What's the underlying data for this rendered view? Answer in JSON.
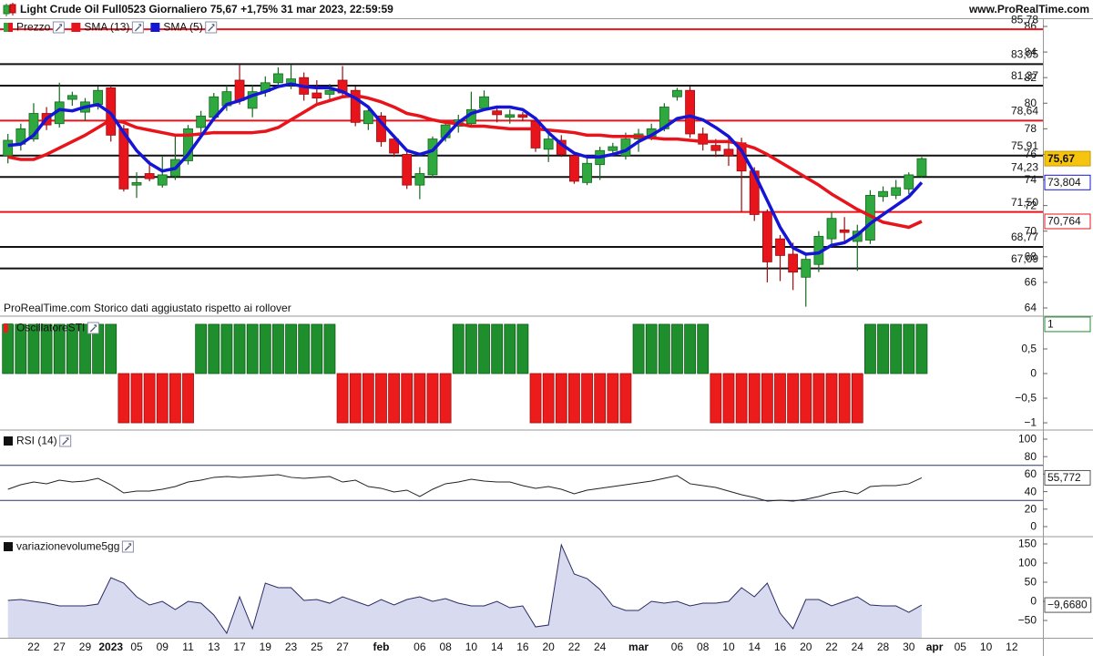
{
  "header": {
    "title": "Light Crude Oil Full0523 Giornaliero 75,67 +1,75% 31 mar 2023, 22:59:59",
    "site": "www.ProRealTime.com"
  },
  "chart_data": [
    {
      "type": "candlestick",
      "name": "Prezzo",
      "categories": [
        null,
        null,
        "22",
        null,
        "27",
        null,
        "29",
        null,
        "2023",
        null,
        "05",
        null,
        "09",
        null,
        "11",
        null,
        "13",
        null,
        "17",
        null,
        "19",
        null,
        "23",
        null,
        "25",
        null,
        "27",
        null,
        null,
        "feb",
        null,
        null,
        "06",
        null,
        "08",
        null,
        "10",
        null,
        "14",
        null,
        "16",
        null,
        "20",
        null,
        "22",
        null,
        "24",
        null,
        null,
        "mar",
        null,
        null,
        "06",
        null,
        "08",
        null,
        "10",
        null,
        "14",
        null,
        "16",
        null,
        "20",
        null,
        "22",
        null,
        "24",
        null,
        "28",
        null,
        "30",
        null,
        "apr",
        null,
        "05",
        null,
        "10",
        null,
        "12",
        null,
        null
      ],
      "open": [
        75.9,
        76.8,
        77.2,
        79.2,
        78.4,
        80.3,
        79.3,
        79.9,
        81.2,
        78.0,
        73.6,
        74.5,
        73.6,
        74.3,
        75.5,
        78.1,
        78.9,
        79.8,
        81.8,
        79.6,
        80.9,
        81.6,
        81.4,
        82.0,
        80.8,
        80.7,
        81.8,
        81.0,
        78.4,
        79.0,
        77.2,
        76.0,
        73.6,
        74.4,
        77.3,
        78.2,
        78.4,
        79.6,
        79.4,
        78.9,
        79.1,
        78.6,
        76.4,
        77.1,
        75.9,
        73.8,
        75.2,
        76.3,
        75.9,
        77.2,
        77.4,
        78.0,
        80.5,
        81.0,
        77.6,
        76.7,
        76.4,
        76.9,
        74.7,
        71.5,
        69.4,
        68.2,
        66.4,
        67.4,
        69.4,
        70.1,
        69.2,
        69.3,
        72.7,
        72.8,
        73.3,
        74.3,
        null,
        null,
        null,
        null,
        null,
        null,
        null,
        null,
        null
      ],
      "high": [
        77.6,
        78.4,
        80.0,
        79.7,
        81.6,
        80.9,
        80.4,
        81.3,
        81.4,
        78.3,
        74.6,
        75.5,
        75.9,
        77.5,
        78.3,
        79.4,
        80.8,
        81.4,
        83.0,
        81.4,
        82.1,
        82.8,
        83.0,
        82.4,
        81.8,
        81.5,
        82.9,
        81.3,
        79.8,
        79.3,
        77.5,
        76.3,
        75.0,
        77.4,
        78.6,
        79.1,
        80.9,
        81.0,
        79.8,
        79.5,
        79.3,
        78.8,
        77.6,
        77.5,
        76.1,
        75.9,
        76.6,
        76.9,
        77.7,
        78.0,
        78.4,
        80.0,
        81.2,
        81.3,
        78.1,
        77.2,
        77.5,
        77.3,
        75.0,
        71.7,
        69.7,
        69.1,
        68.3,
        70.0,
        71.5,
        71.1,
        70.5,
        73.2,
        73.5,
        74.0,
        74.6,
        75.8,
        null,
        null,
        null,
        null,
        null,
        null,
        null,
        null,
        null
      ],
      "low": [
        75.3,
        76.3,
        77.0,
        77.9,
        78.1,
        79.8,
        78.6,
        79.5,
        77.0,
        73.1,
        72.6,
        73.9,
        73.4,
        74.0,
        75.2,
        77.6,
        78.6,
        79.4,
        79.9,
        78.9,
        80.5,
        81.2,
        81.1,
        80.2,
        79.9,
        80.3,
        80.5,
        78.2,
        77.9,
        76.6,
        75.8,
        73.3,
        72.5,
        74.2,
        77.0,
        77.7,
        78.3,
        79.4,
        78.5,
        78.4,
        78.6,
        76.2,
        75.4,
        75.8,
        73.7,
        73.6,
        74.0,
        75.9,
        75.6,
        76.2,
        77.1,
        77.8,
        80.2,
        77.3,
        76.3,
        75.8,
        75.1,
        71.5,
        70.8,
        66.0,
        66.1,
        65.4,
        64.1,
        66.8,
        68.9,
        69.2,
        66.9,
        69.0,
        72.3,
        72.5,
        72.9,
        74.2,
        null,
        null,
        null,
        null,
        null,
        null,
        null,
        null,
        null
      ],
      "close": [
        77.1,
        78.0,
        79.2,
        78.3,
        80.1,
        80.6,
        80.1,
        81.0,
        77.5,
        73.3,
        73.8,
        74.1,
        74.4,
        75.6,
        78.0,
        79.0,
        80.5,
        80.9,
        80.2,
        80.9,
        81.6,
        82.3,
        81.9,
        80.7,
        80.4,
        81.0,
        80.8,
        78.5,
        79.4,
        77.0,
        76.1,
        73.6,
        74.5,
        77.2,
        78.3,
        78.7,
        79.5,
        80.5,
        79.1,
        79.1,
        78.9,
        76.5,
        77.2,
        76.0,
        73.9,
        75.3,
        76.3,
        76.6,
        77.2,
        77.6,
        78.0,
        79.7,
        81.0,
        77.6,
        76.8,
        76.3,
        75.9,
        74.7,
        71.3,
        67.6,
        68.1,
        66.8,
        67.8,
        69.6,
        71.0,
        69.9,
        70.0,
        72.8,
        73.1,
        73.4,
        74.4,
        75.67,
        null,
        null,
        null,
        null,
        null,
        null,
        null,
        null,
        null
      ],
      "up_color": "#2ea83f",
      "down_color": "#e8141b",
      "close_label": "75,67",
      "series": [
        {
          "name": "SMA (13)",
          "color": "#e8141b",
          "last_label": "70,764",
          "values": [
            75.8,
            75.6,
            75.6,
            76.0,
            76.5,
            77.0,
            77.5,
            78.1,
            78.7,
            78.5,
            78.1,
            77.9,
            77.7,
            77.5,
            77.5,
            77.6,
            77.7,
            77.7,
            77.7,
            77.7,
            77.8,
            78.1,
            78.7,
            79.3,
            79.9,
            80.2,
            80.5,
            80.6,
            80.4,
            80.1,
            79.7,
            79.2,
            79.0,
            78.7,
            78.5,
            78.4,
            78.2,
            78.2,
            78.1,
            78.0,
            78.0,
            78.0,
            77.9,
            77.8,
            77.7,
            77.5,
            77.5,
            77.4,
            77.4,
            77.4,
            77.3,
            77.2,
            77.2,
            77.1,
            77.0,
            77.0,
            77.0,
            76.8,
            76.5,
            76.0,
            75.4,
            74.8,
            74.2,
            73.6,
            72.9,
            72.3,
            71.7,
            71.2,
            70.7,
            70.5,
            70.3,
            70.764,
            null,
            null,
            null,
            null,
            null,
            null,
            null,
            null,
            null
          ]
        },
        {
          "name": "SMA (5)",
          "color": "#1515d6",
          "last_label": "73,804",
          "values": [
            76.7,
            76.8,
            77.5,
            78.8,
            79.5,
            79.4,
            79.7,
            79.9,
            79.2,
            77.7,
            76.3,
            75.3,
            74.7,
            74.9,
            76.0,
            77.4,
            78.8,
            79.9,
            80.2,
            80.6,
            80.9,
            81.3,
            81.5,
            81.3,
            81.2,
            81.2,
            80.9,
            80.4,
            79.7,
            78.5,
            77.4,
            76.3,
            76.0,
            76.3,
            77.4,
            78.5,
            79.2,
            79.5,
            79.7,
            79.7,
            79.5,
            78.8,
            77.7,
            76.8,
            76.1,
            75.8,
            75.8,
            76.0,
            76.3,
            77.0,
            77.5,
            78.1,
            78.8,
            79.0,
            78.7,
            78.1,
            77.4,
            76.3,
            74.5,
            72.4,
            70.3,
            68.7,
            68.2,
            68.3,
            68.9,
            69.1,
            69.7,
            70.6,
            71.3,
            72.0,
            72.7,
            73.804,
            null,
            null,
            null,
            null,
            null,
            null,
            null,
            null,
            null
          ]
        }
      ],
      "levels": [
        {
          "value": 85.78,
          "label": "85,78",
          "color": "#e8141b"
        },
        {
          "value": 83.05,
          "label": "83,05",
          "color": "#111111"
        },
        {
          "value": 81.37,
          "label": "81,37",
          "color": "#111111"
        },
        {
          "value": 78.64,
          "label": "78,64",
          "color": "#e8141b"
        },
        {
          "value": 75.91,
          "label": "75,91",
          "color": "#111111"
        },
        {
          "value": 74.23,
          "label": "74,23",
          "color": "#111111"
        },
        {
          "value": 71.5,
          "label": "71,50",
          "color": "#e8141b"
        },
        {
          "value": 68.77,
          "label": "68,77",
          "color": "#111111"
        },
        {
          "value": 67.09,
          "label": "67,09",
          "color": "#111111"
        }
      ],
      "ylim": [
        63.43,
        86.64
      ],
      "yticks": [
        64,
        66,
        68,
        70,
        72,
        74,
        76,
        78,
        80,
        82,
        84,
        86
      ],
      "annotation": "ProRealTime.com  Storico dati aggiustato rispetto ai rollover"
    },
    {
      "type": "bar",
      "name": "OscillatoreSTI",
      "up_color": "#1f8f2e",
      "down_color": "#ec1c1c",
      "last_label": "1",
      "values": [
        1,
        1,
        1,
        1,
        1,
        1,
        1,
        1,
        1,
        -1,
        -1,
        -1,
        -1,
        -1,
        -1,
        1,
        1,
        1,
        1,
        1,
        1,
        1,
        1,
        1,
        1,
        1,
        -1,
        -1,
        -1,
        -1,
        -1,
        -1,
        -1,
        -1,
        -1,
        1,
        1,
        1,
        1,
        1,
        1,
        -1,
        -1,
        -1,
        -1,
        -1,
        -1,
        -1,
        -1,
        1,
        1,
        1,
        1,
        1,
        1,
        -1,
        -1,
        -1,
        -1,
        -1,
        -1,
        -1,
        -1,
        -1,
        -1,
        -1,
        -1,
        1,
        1,
        1,
        1,
        1,
        null,
        null,
        null,
        null,
        null,
        null,
        null,
        null,
        null
      ],
      "ylim": [
        -1.11,
        1.11
      ],
      "yticks": [
        {
          "value": 0.5,
          "label": "0,5"
        },
        0,
        {
          "value": -0.5,
          "label": "−0,5"
        },
        {
          "value": -1,
          "label": "−1"
        }
      ]
    },
    {
      "type": "line",
      "name": "RSI (14)",
      "color": "#222222",
      "last_label": "55,772",
      "values": [
        42.7,
        47.9,
        51.0,
        49.0,
        53.1,
        51.0,
        52.1,
        55.2,
        47.9,
        38.5,
        40.6,
        40.6,
        42.7,
        45.8,
        51.0,
        53.1,
        56.3,
        57.3,
        56.3,
        57.3,
        58.3,
        59.4,
        56.3,
        55.2,
        56.3,
        57.3,
        51.0,
        53.1,
        45.8,
        43.8,
        39.6,
        41.7,
        34.4,
        42.7,
        49.0,
        51.0,
        54.2,
        52.1,
        51.0,
        51.0,
        46.9,
        43.8,
        45.8,
        42.7,
        37.5,
        41.7,
        43.8,
        45.8,
        47.9,
        50.0,
        52.1,
        55.2,
        58.3,
        49.0,
        46.9,
        44.8,
        40.6,
        36.5,
        33.3,
        29.2,
        30.2,
        29.2,
        31.3,
        34.4,
        38.5,
        40.6,
        37.5,
        45.8,
        46.9,
        46.9,
        49.0,
        55.772,
        null,
        null,
        null,
        null,
        null,
        null,
        null,
        null,
        null
      ],
      "levels": [
        {
          "value": 70,
          "color": "#2d3561"
        },
        {
          "value": 30,
          "color": "#2d3561"
        }
      ],
      "ylim": [
        -10.4,
        108.3
      ],
      "yticks": [
        0,
        20,
        40,
        60,
        80,
        100
      ]
    },
    {
      "type": "area",
      "name": "variazionevolume5gg",
      "color": "#2a2a66",
      "fill": "#d8dbef",
      "last_label": "−9,6680",
      "values": [
        2.4,
        4.8,
        0,
        -4.8,
        -11.9,
        -11.9,
        -11.9,
        -7.1,
        61.9,
        47.6,
        11.9,
        -9.5,
        0,
        -21.4,
        0,
        -4.8,
        -35.7,
        -83.3,
        11.9,
        -71.4,
        47.6,
        35.7,
        35.7,
        2.4,
        4.8,
        -4.8,
        11.9,
        0,
        -11.9,
        4.8,
        -9.5,
        4.8,
        11.9,
        0,
        7.1,
        -4.8,
        -11.9,
        -11.9,
        0,
        -16.7,
        -11.9,
        -66.7,
        -61.9,
        147.6,
        71.4,
        59.5,
        31.0,
        -11.9,
        -23.8,
        -23.8,
        0,
        -4.8,
        0,
        -11.9,
        -4.8,
        -4.8,
        0,
        35.7,
        11.9,
        47.6,
        -31.0,
        -71.4,
        4.8,
        4.8,
        -11.9,
        0,
        11.9,
        -9.5,
        -11.9,
        -11.9,
        -28.6,
        -9.668,
        null,
        null,
        null,
        null,
        null,
        null,
        null,
        null,
        null
      ],
      "ylim": [
        -95.2,
        166.7
      ],
      "yticks": [
        {
          "value": -50,
          "label": "−50"
        },
        0,
        50,
        100,
        150
      ]
    }
  ]
}
